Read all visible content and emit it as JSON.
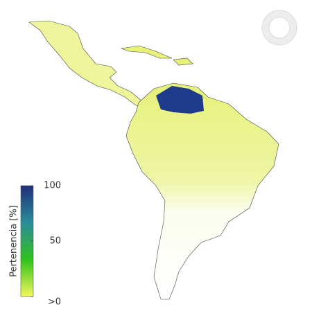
{
  "legend": {
    "title": "Pertenencia [%]",
    "range": [
      0,
      100
    ],
    "ticks": [
      {
        "value": 0,
        "label": ">0"
      },
      50,
      100
    ],
    "colors": [
      "#f2f75a",
      "#2fc21c",
      "#2b8c9a",
      "#1f2f7a"
    ]
  }
}
